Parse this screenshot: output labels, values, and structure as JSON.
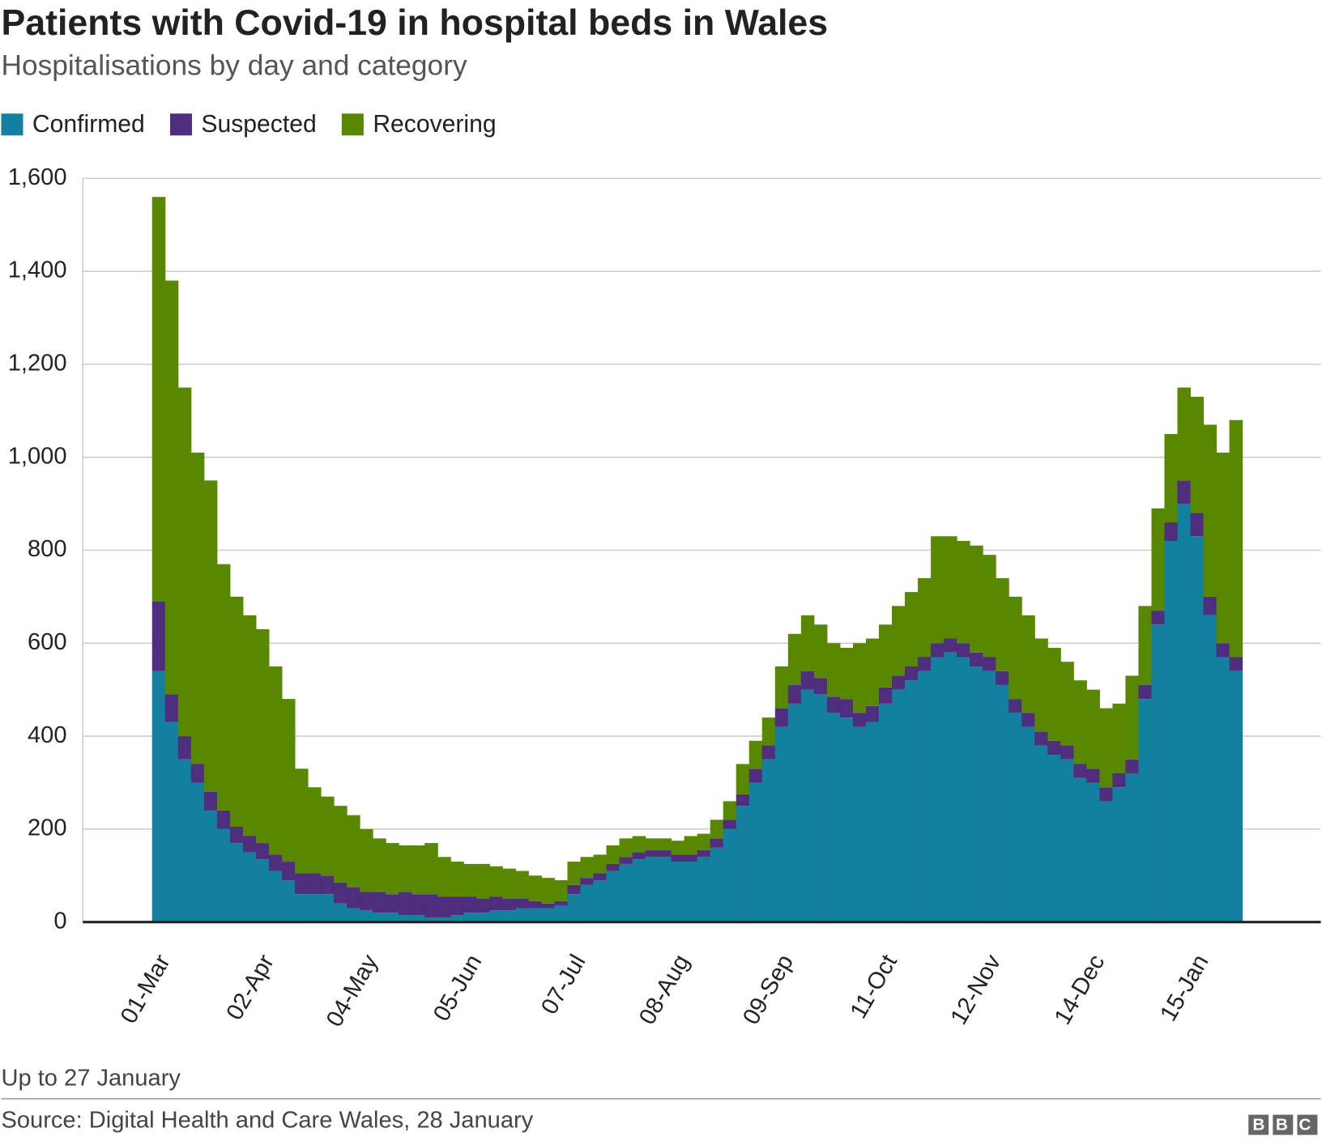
{
  "chart_data": {
    "type": "stacked-bar",
    "title": "Patients with Covid-19 in hospital beds in Wales",
    "subtitle": "Hospitalisations by day and category",
    "note": "Up to 27 January",
    "source": "Source: Digital Health and Care Wales, 28 January",
    "logo": "BBC",
    "legend": "top-left",
    "grid": true,
    "ylim": [
      0,
      1600
    ],
    "yticks": [
      0,
      200,
      400,
      600,
      800,
      {
        "value": 1000,
        "label": "1,000"
      },
      {
        "value": 1200,
        "label": "1,200"
      },
      {
        "value": 1400,
        "label": "1,400"
      },
      {
        "value": 1600,
        "label": "1,600"
      }
    ],
    "categories": [
      "01-Mar",
      null,
      null,
      null,
      null,
      null,
      null,
      null,
      "02-Apr",
      null,
      null,
      null,
      null,
      null,
      null,
      null,
      "04-May",
      null,
      null,
      null,
      null,
      null,
      null,
      null,
      "05-Jun",
      null,
      null,
      null,
      null,
      null,
      null,
      null,
      "07-Jul",
      null,
      null,
      null,
      null,
      null,
      null,
      null,
      "08-Aug",
      null,
      null,
      null,
      null,
      null,
      null,
      null,
      "09-Sep",
      null,
      null,
      null,
      null,
      null,
      null,
      null,
      "11-Oct",
      null,
      null,
      null,
      null,
      null,
      null,
      null,
      "12-Nov",
      null,
      null,
      null,
      null,
      null,
      null,
      null,
      "14-Dec",
      null,
      null,
      null,
      null,
      null,
      null,
      null,
      "15-Jan",
      null,
      null,
      null
    ],
    "series": [
      {
        "name": "Confirmed",
        "color": "#1380a1",
        "values": [
          540,
          430,
          350,
          300,
          240,
          200,
          170,
          150,
          135,
          110,
          90,
          60,
          60,
          60,
          40,
          30,
          25,
          20,
          20,
          15,
          15,
          10,
          10,
          15,
          20,
          20,
          25,
          25,
          30,
          30,
          30,
          35,
          60,
          80,
          90,
          110,
          125,
          135,
          140,
          140,
          130,
          130,
          140,
          160,
          200,
          250,
          300,
          350,
          420,
          470,
          500,
          490,
          450,
          440,
          420,
          430,
          470,
          500,
          520,
          540,
          570,
          580,
          570,
          550,
          540,
          510,
          450,
          420,
          380,
          360,
          350,
          310,
          300,
          260,
          290,
          320,
          480,
          640,
          820,
          900,
          830,
          660,
          570,
          540
        ]
      },
      {
        "name": "Suspected",
        "color": "#4f2d7f",
        "values": [
          150,
          60,
          50,
          40,
          40,
          40,
          35,
          35,
          35,
          35,
          40,
          45,
          45,
          40,
          45,
          45,
          40,
          45,
          40,
          50,
          45,
          50,
          45,
          40,
          35,
          30,
          30,
          25,
          20,
          15,
          10,
          10,
          20,
          15,
          15,
          15,
          15,
          15,
          15,
          15,
          15,
          15,
          15,
          20,
          20,
          25,
          30,
          30,
          40,
          40,
          40,
          35,
          35,
          40,
          30,
          35,
          35,
          30,
          30,
          30,
          30,
          30,
          30,
          30,
          30,
          30,
          30,
          30,
          30,
          30,
          30,
          30,
          30,
          30,
          30,
          30,
          30,
          30,
          40,
          50,
          50,
          40,
          30,
          30
        ]
      },
      {
        "name": "Recovering",
        "color": "#588700",
        "values": [
          870,
          890,
          750,
          670,
          670,
          530,
          495,
          475,
          460,
          405,
          350,
          225,
          185,
          170,
          165,
          155,
          135,
          115,
          110,
          100,
          105,
          110,
          85,
          75,
          70,
          75,
          65,
          65,
          60,
          55,
          55,
          45,
          50,
          45,
          40,
          40,
          40,
          35,
          25,
          25,
          30,
          40,
          35,
          40,
          40,
          65,
          60,
          60,
          90,
          110,
          120,
          115,
          115,
          110,
          150,
          145,
          135,
          150,
          160,
          170,
          230,
          220,
          220,
          230,
          220,
          200,
          220,
          210,
          200,
          200,
          180,
          180,
          170,
          170,
          150,
          180,
          170,
          220,
          190,
          200,
          250,
          370,
          410,
          510
        ]
      }
    ]
  }
}
